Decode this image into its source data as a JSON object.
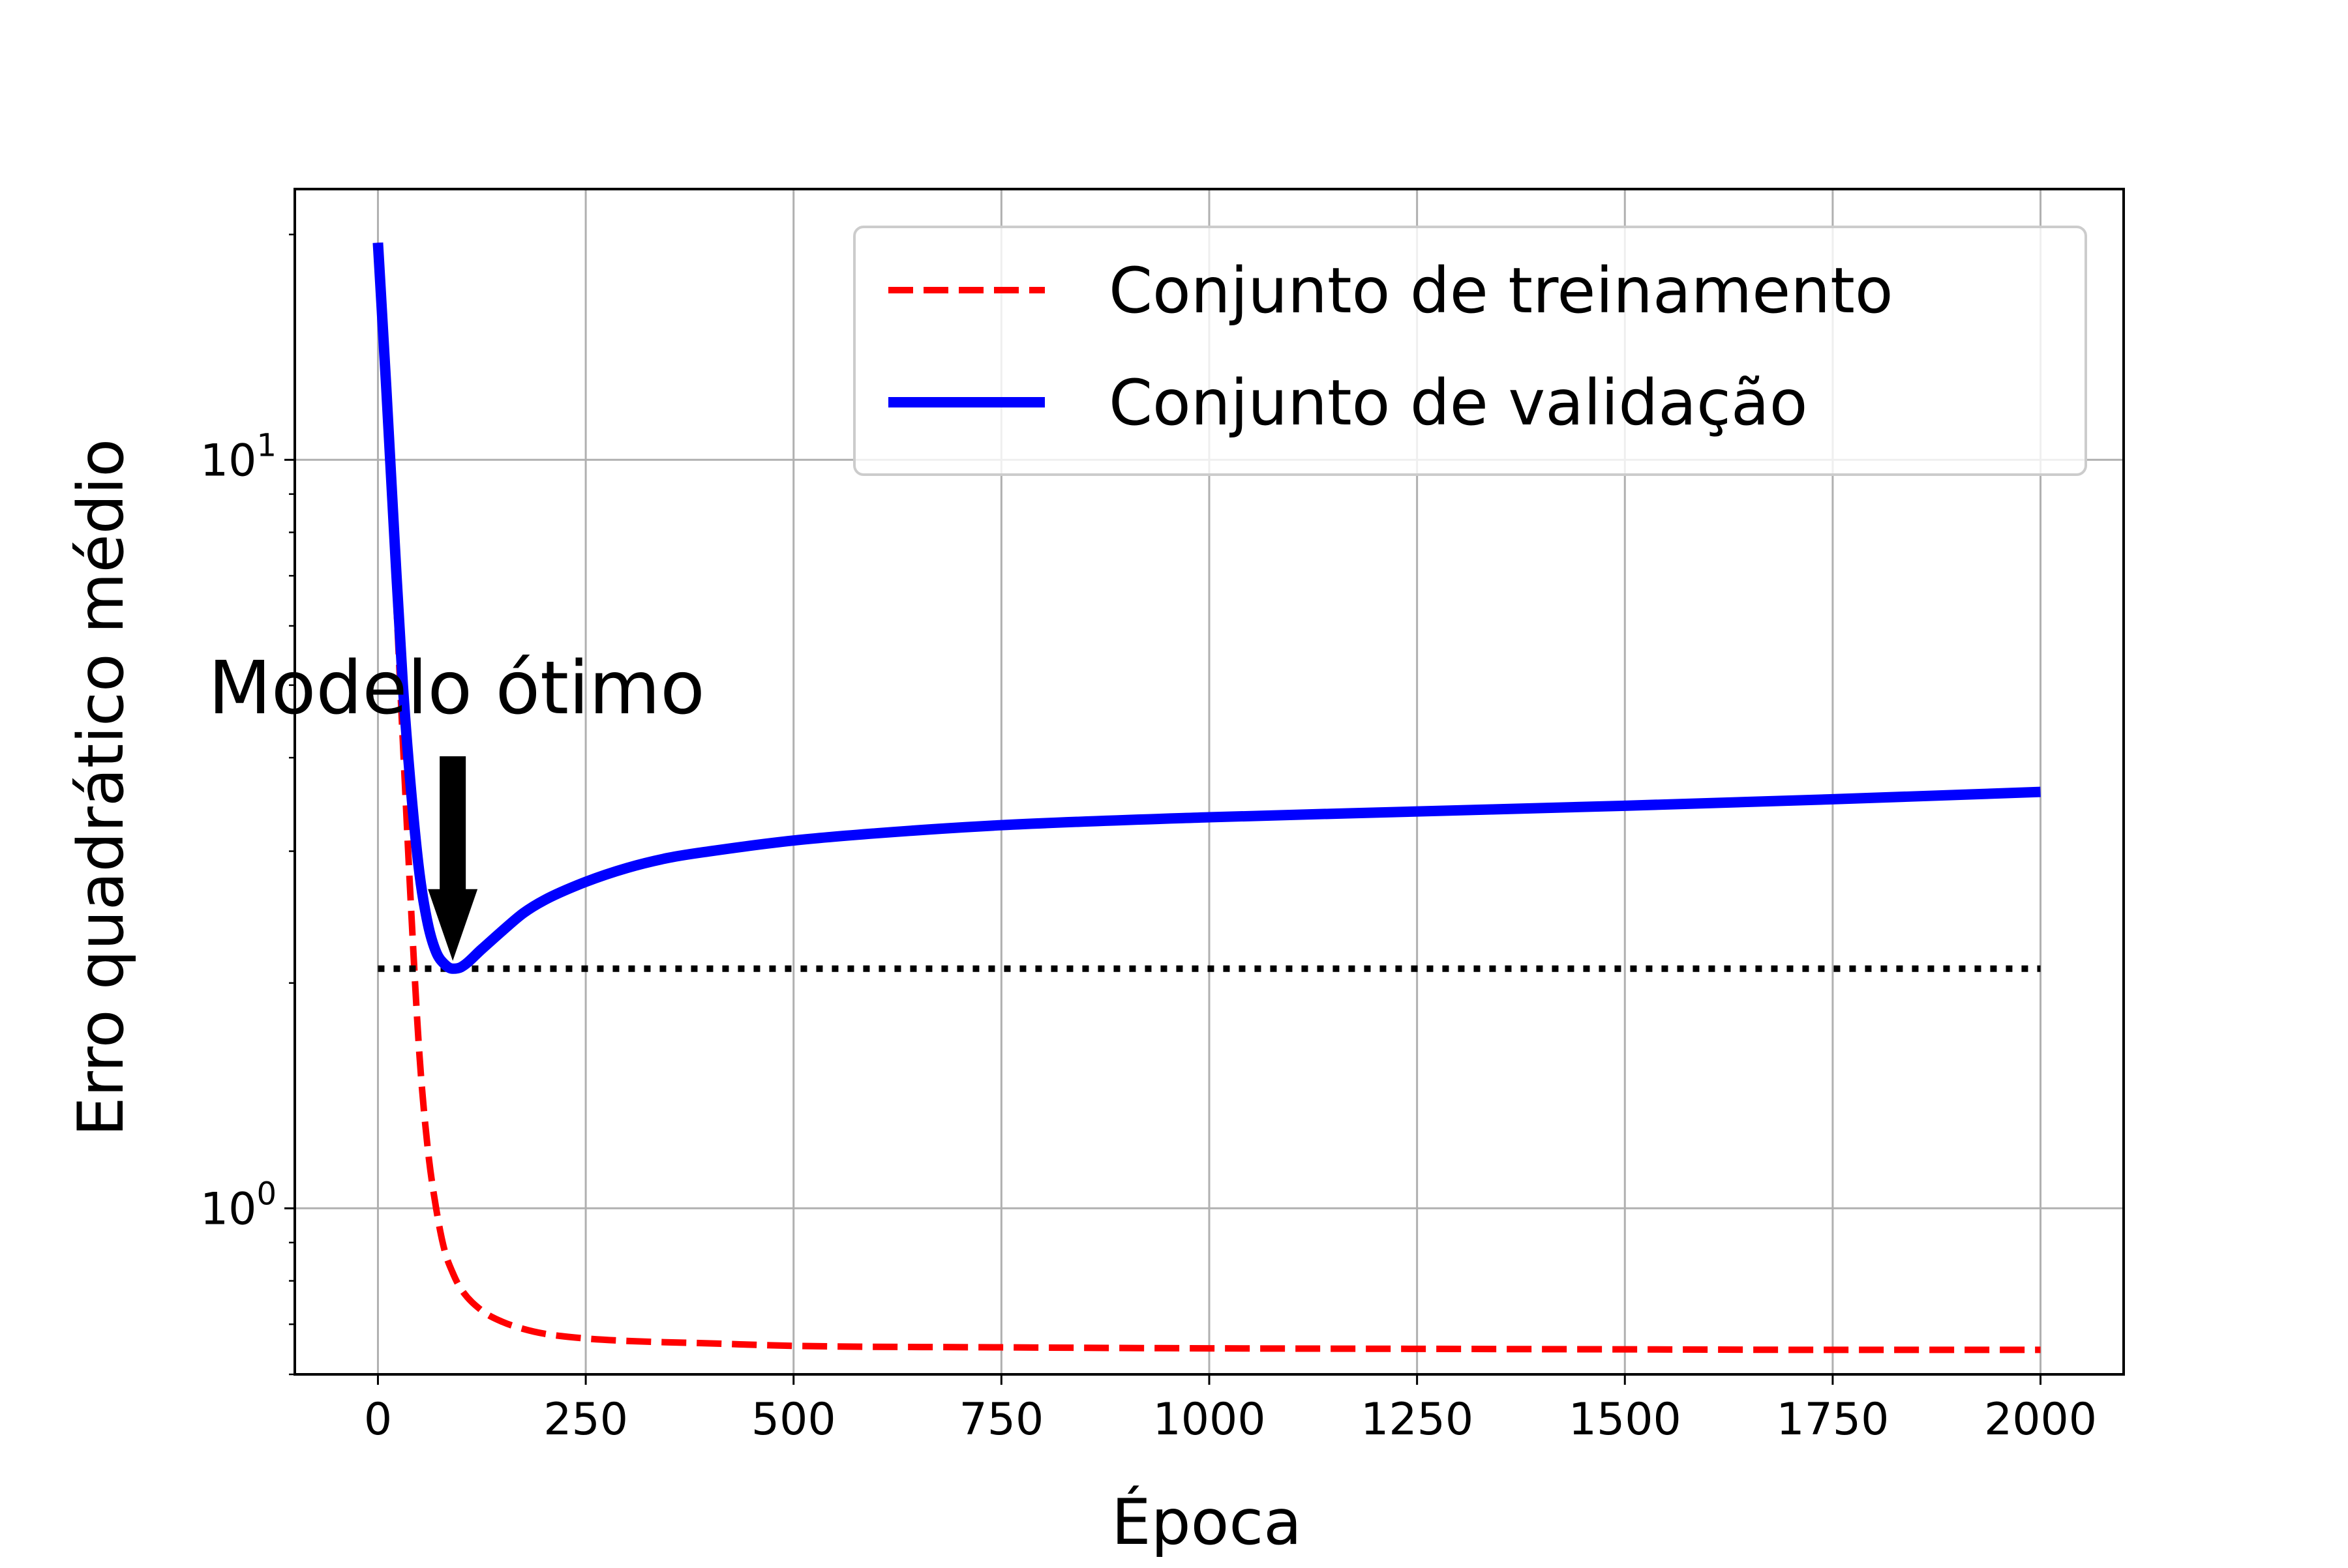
{
  "chart_data": {
    "type": "line",
    "xlabel": "Época",
    "ylabel": "Erro quadrático médio",
    "xlim": [
      -100,
      2100
    ],
    "ylim": [
      0.6,
      23
    ],
    "yscale": "log",
    "xticks": [
      0,
      250,
      500,
      750,
      1000,
      1250,
      1500,
      1750,
      2000
    ],
    "yticks": [
      {
        "value": 1,
        "base": "10",
        "exp": "0"
      },
      {
        "value": 10,
        "base": "10",
        "exp": "1"
      }
    ],
    "yminor_ticks": [
      0.6,
      0.7,
      0.8,
      0.9,
      2,
      3,
      4,
      5,
      6,
      7,
      8,
      9,
      20
    ],
    "grid": true,
    "legend_position": "top-right",
    "series": [
      {
        "name": "Conjunto de treinamento",
        "style": "dashed",
        "color": "#ff0000",
        "x": [
          0,
          10,
          20,
          30,
          40,
          50,
          60,
          70,
          80,
          90,
          100,
          125,
          150,
          175,
          200,
          250,
          300,
          400,
          500,
          750,
          1000,
          1250,
          1500,
          1750,
          2000
        ],
        "y": [
          19.5,
          12.0,
          7.2,
          4.2,
          2.5,
          1.6,
          1.2,
          1.0,
          0.88,
          0.82,
          0.78,
          0.73,
          0.705,
          0.69,
          0.68,
          0.67,
          0.665,
          0.66,
          0.655,
          0.652,
          0.65,
          0.649,
          0.648,
          0.647,
          0.647
        ]
      },
      {
        "name": "Conjunto de validação",
        "style": "solid",
        "color": "#0000ff",
        "x": [
          0,
          10,
          20,
          30,
          40,
          50,
          60,
          70,
          80,
          90,
          100,
          125,
          150,
          175,
          200,
          250,
          300,
          350,
          400,
          500,
          600,
          750,
          1000,
          1250,
          1500,
          1750,
          2000
        ],
        "y": [
          19.5,
          12.5,
          7.8,
          5.0,
          3.6,
          2.8,
          2.4,
          2.2,
          2.12,
          2.09,
          2.1,
          2.22,
          2.35,
          2.48,
          2.58,
          2.73,
          2.85,
          2.94,
          3.0,
          3.1,
          3.17,
          3.25,
          3.33,
          3.39,
          3.45,
          3.52,
          3.6
        ]
      },
      {
        "name": "",
        "style": "dotted",
        "color": "#000000",
        "x": [
          0,
          2000
        ],
        "y": [
          2.09,
          2.09
        ]
      }
    ],
    "annotations": [
      {
        "text": "Modelo ótimo",
        "target_x": 90,
        "target_y": 2.09
      }
    ]
  }
}
